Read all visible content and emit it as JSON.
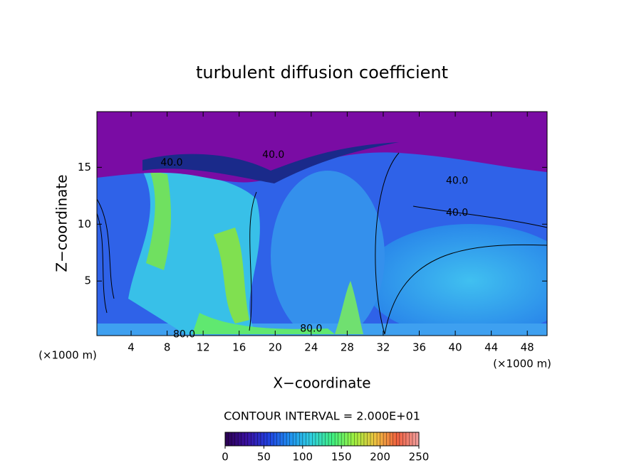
{
  "chart_data": {
    "type": "contour",
    "title": "turbulent diffusion coefficient",
    "x_label": "X−coordinate",
    "y_label": "Z−coordinate",
    "x_unit_left": "(×1000 m)",
    "x_unit_right": "(×1000 m)",
    "contour_interval_text": "CONTOUR INTERVAL = 2.000E+01",
    "xlim": [
      0.2,
      50.2
    ],
    "ylim": [
      0.2,
      19.9
    ],
    "xticks": [
      4,
      8,
      12,
      16,
      20,
      24,
      28,
      32,
      36,
      40,
      44,
      48
    ],
    "yticks": [
      5,
      10,
      15
    ],
    "contour_labels": [
      {
        "text": "40.0",
        "x": 19.8,
        "y": 16.1
      },
      {
        "text": "40.0",
        "x": 8.5,
        "y": 15.4
      },
      {
        "text": "40.0",
        "x": 40.2,
        "y": 13.8
      },
      {
        "text": "40.0",
        "x": 40.2,
        "y": 11.0
      },
      {
        "text": "80.0",
        "x": 24.0,
        "y": 0.8
      },
      {
        "text": "80.0",
        "x": 9.9,
        "y": 0.3
      }
    ],
    "colorbar": {
      "lim": [
        0,
        250
      ],
      "ticks": [
        0,
        50,
        100,
        150,
        200,
        250
      ],
      "colors": [
        "#2a0050",
        "#3a10a0",
        "#2040e0",
        "#2090f0",
        "#30d0e0",
        "#40f080",
        "#a0f040",
        "#f0c040",
        "#f06040",
        "#f0a0a0"
      ]
    }
  }
}
